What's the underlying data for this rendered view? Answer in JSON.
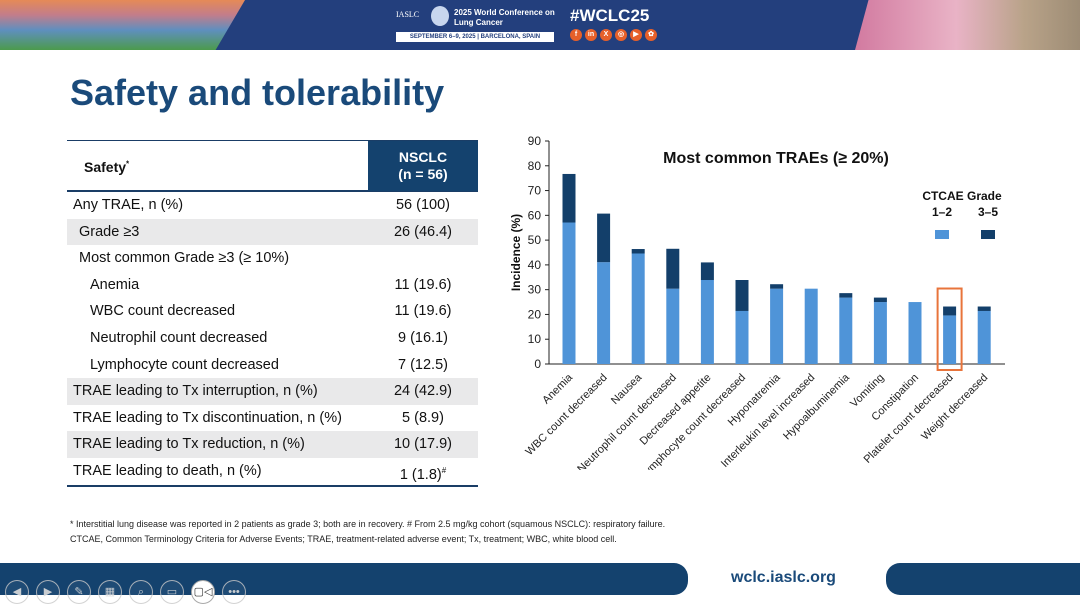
{
  "banner": {
    "org": "IASLC",
    "conference": "2025 World Conference on Lung Cancer",
    "dates": "SEPTEMBER 6–9, 2025  |  BARCELONA, SPAIN",
    "hashtag": "#WCLC25",
    "social_icons": [
      "facebook-icon",
      "linkedin-icon",
      "x-icon",
      "instagram-icon",
      "youtube-icon",
      "wechat-icon"
    ],
    "social_glyphs": [
      "f",
      "in",
      "X",
      "◎",
      "▶",
      "✿"
    ]
  },
  "title": "Safety and tolerability",
  "table": {
    "col1_header": "Safety",
    "col1_header_mark": "*",
    "col2_header": "NSCLC",
    "col2_sub": "(n = 56)",
    "rows": [
      {
        "label": "Any TRAE, n (%)",
        "value": "56 (100)",
        "indent": 0,
        "shade": false
      },
      {
        "label": "Grade ≥3",
        "value": "26 (46.4)",
        "indent": 1,
        "shade": true
      },
      {
        "label": "Most common Grade ≥3 (≥ 10%)",
        "value": "",
        "indent": 1,
        "shade": false
      },
      {
        "label": "Anemia",
        "value": "11 (19.6)",
        "indent": 2,
        "shade": false
      },
      {
        "label": "WBC count decreased",
        "value": "11 (19.6)",
        "indent": 2,
        "shade": false
      },
      {
        "label": "Neutrophil count decreased",
        "value": "9 (16.1)",
        "indent": 2,
        "shade": false
      },
      {
        "label": "Lymphocyte count decreased",
        "value": "7 (12.5)",
        "indent": 2,
        "shade": false
      },
      {
        "label": "TRAE leading to Tx interruption, n (%)",
        "value": "24 (42.9)",
        "indent": 0,
        "shade": true
      },
      {
        "label": "TRAE leading to Tx discontinuation, n (%)",
        "value": "5 (8.9)",
        "indent": 0,
        "shade": false
      },
      {
        "label": "TRAE leading to Tx reduction, n (%)",
        "value": "10 (17.9)",
        "indent": 0,
        "shade": true
      },
      {
        "label": "TRAE leading to death, n (%)",
        "value": "1 (1.8)",
        "mark": "#",
        "indent": 0,
        "shade": false
      }
    ]
  },
  "chart_data": {
    "type": "bar",
    "stacked": true,
    "title": "Most common TRAEs (≥ 20%)",
    "ylabel": "Incidence (%)",
    "xlabel": "",
    "ylim": [
      0,
      90
    ],
    "yticks": [
      0,
      10,
      20,
      30,
      40,
      50,
      60,
      70,
      80,
      90
    ],
    "categories": [
      "Anemia",
      "WBC count decreased",
      "Nausea",
      "Neutrophil count decreased",
      "Decreased appetite",
      "Lymphocyte count decreased",
      "Hyponatremia",
      "Interleukin level increased",
      "Hypoalbuminemia",
      "Vomiting",
      "Constipation",
      "Platelet count decreased",
      "Weight decreased"
    ],
    "legend_title": "CTCAE Grade",
    "legend_position": "right",
    "series": [
      {
        "name": "1–2",
        "color": "#4f94d8",
        "values": [
          57.1,
          41.1,
          44.6,
          30.4,
          33.9,
          21.4,
          30.4,
          30.4,
          26.8,
          25.0,
          25.0,
          19.6,
          21.4
        ]
      },
      {
        "name": "3–5",
        "color": "#133f6a",
        "values": [
          19.6,
          19.6,
          1.8,
          16.1,
          7.1,
          12.5,
          1.8,
          0,
          1.8,
          1.8,
          0,
          3.6,
          1.8
        ]
      }
    ],
    "highlight": {
      "category": "Platelet count decreased",
      "color": "#e8743b"
    }
  },
  "footnotes": [
    "* Interstitial lung disease was reported in 2 patients as grade 3; both are in recovery. # From 2.5 mg/kg cohort (squamous NSCLC): respiratory failure.",
    "CTCAE, Common Terminology Criteria for Adverse Events; TRAE, treatment-related adverse event; Tx, treatment; WBC, white blood cell."
  ],
  "footer": {
    "url": "wclc.iaslc.org"
  },
  "controls": [
    {
      "name": "previous-icon",
      "glyph": "◀"
    },
    {
      "name": "next-icon",
      "glyph": "▶"
    },
    {
      "name": "pen-icon",
      "glyph": "✎"
    },
    {
      "name": "slides-icon",
      "glyph": "▦"
    },
    {
      "name": "zoom-icon",
      "glyph": "⌕"
    },
    {
      "name": "subtitles-icon",
      "glyph": "▭"
    },
    {
      "name": "camera-icon",
      "glyph": "▢◁"
    },
    {
      "name": "more-icon",
      "glyph": "•••"
    }
  ]
}
